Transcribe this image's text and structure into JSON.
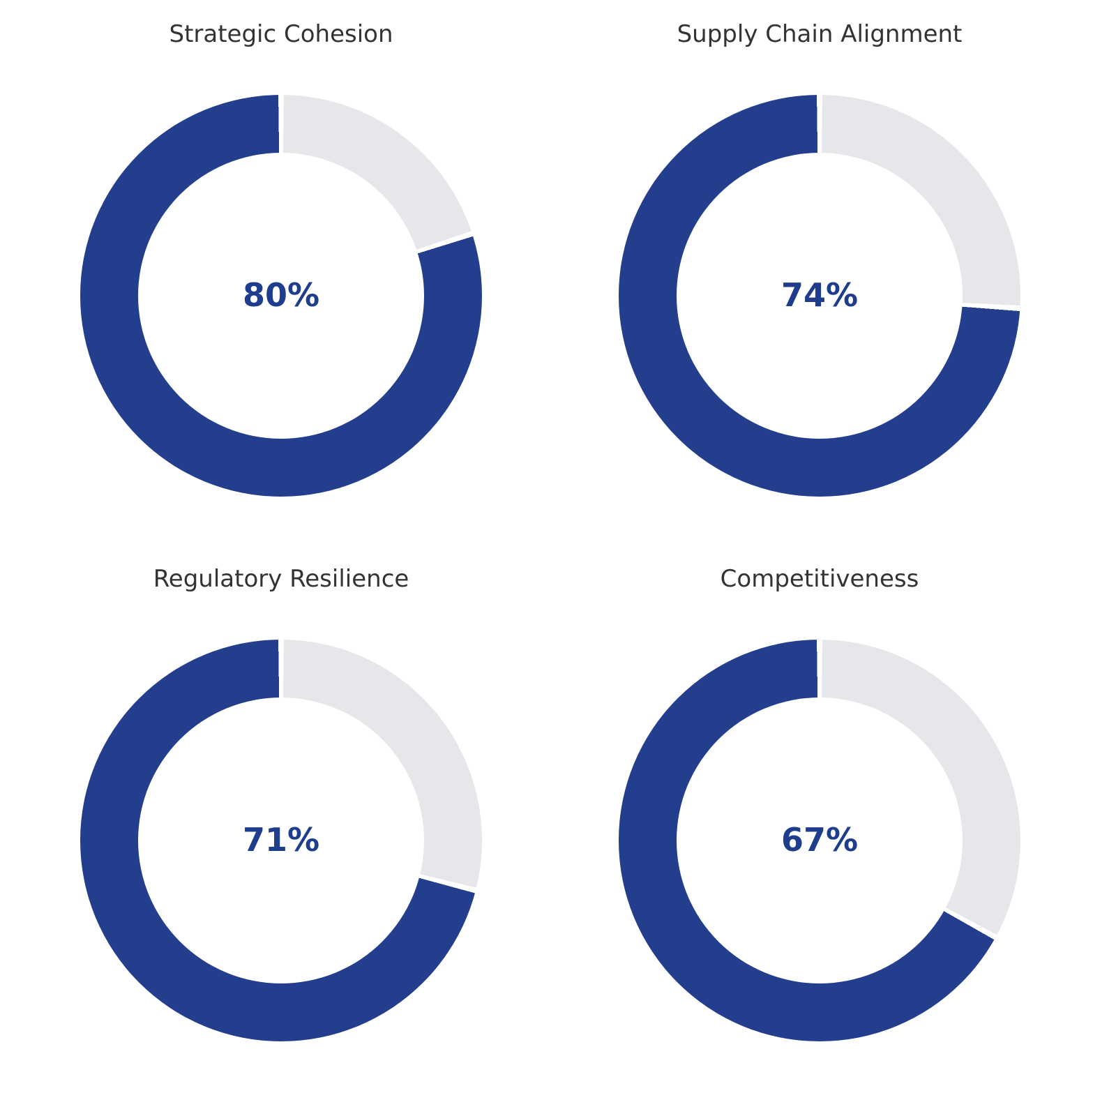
{
  "colors": {
    "background": "#FFFFFF",
    "filled": "#243E8E",
    "remainder": "#E6E7EA",
    "wedge_edge": "#FFFFFF",
    "title_text": "#333333",
    "center_text": "#1E3D8C"
  },
  "chart_data": [
    {
      "type": "pie",
      "subtype": "donut",
      "title": "Strategic Cohesion",
      "center_label": "80%",
      "start_angle_deg": 90,
      "direction": "counterclockwise",
      "series": [
        {
          "name": "score",
          "value": 80
        },
        {
          "name": "remainder",
          "value": 20
        }
      ]
    },
    {
      "type": "pie",
      "subtype": "donut",
      "title": "Supply Chain Alignment",
      "center_label": "74%",
      "start_angle_deg": 90,
      "direction": "counterclockwise",
      "series": [
        {
          "name": "score",
          "value": 74
        },
        {
          "name": "remainder",
          "value": 26
        }
      ]
    },
    {
      "type": "pie",
      "subtype": "donut",
      "title": "Regulatory Resilience",
      "center_label": "71%",
      "start_angle_deg": 90,
      "direction": "counterclockwise",
      "series": [
        {
          "name": "score",
          "value": 71
        },
        {
          "name": "remainder",
          "value": 29
        }
      ]
    },
    {
      "type": "pie",
      "subtype": "donut",
      "title": "Competitiveness",
      "center_label": "67%",
      "start_angle_deg": 90,
      "direction": "counterclockwise",
      "series": [
        {
          "name": "score",
          "value": 67
        },
        {
          "name": "remainder",
          "value": 33
        }
      ]
    }
  ]
}
